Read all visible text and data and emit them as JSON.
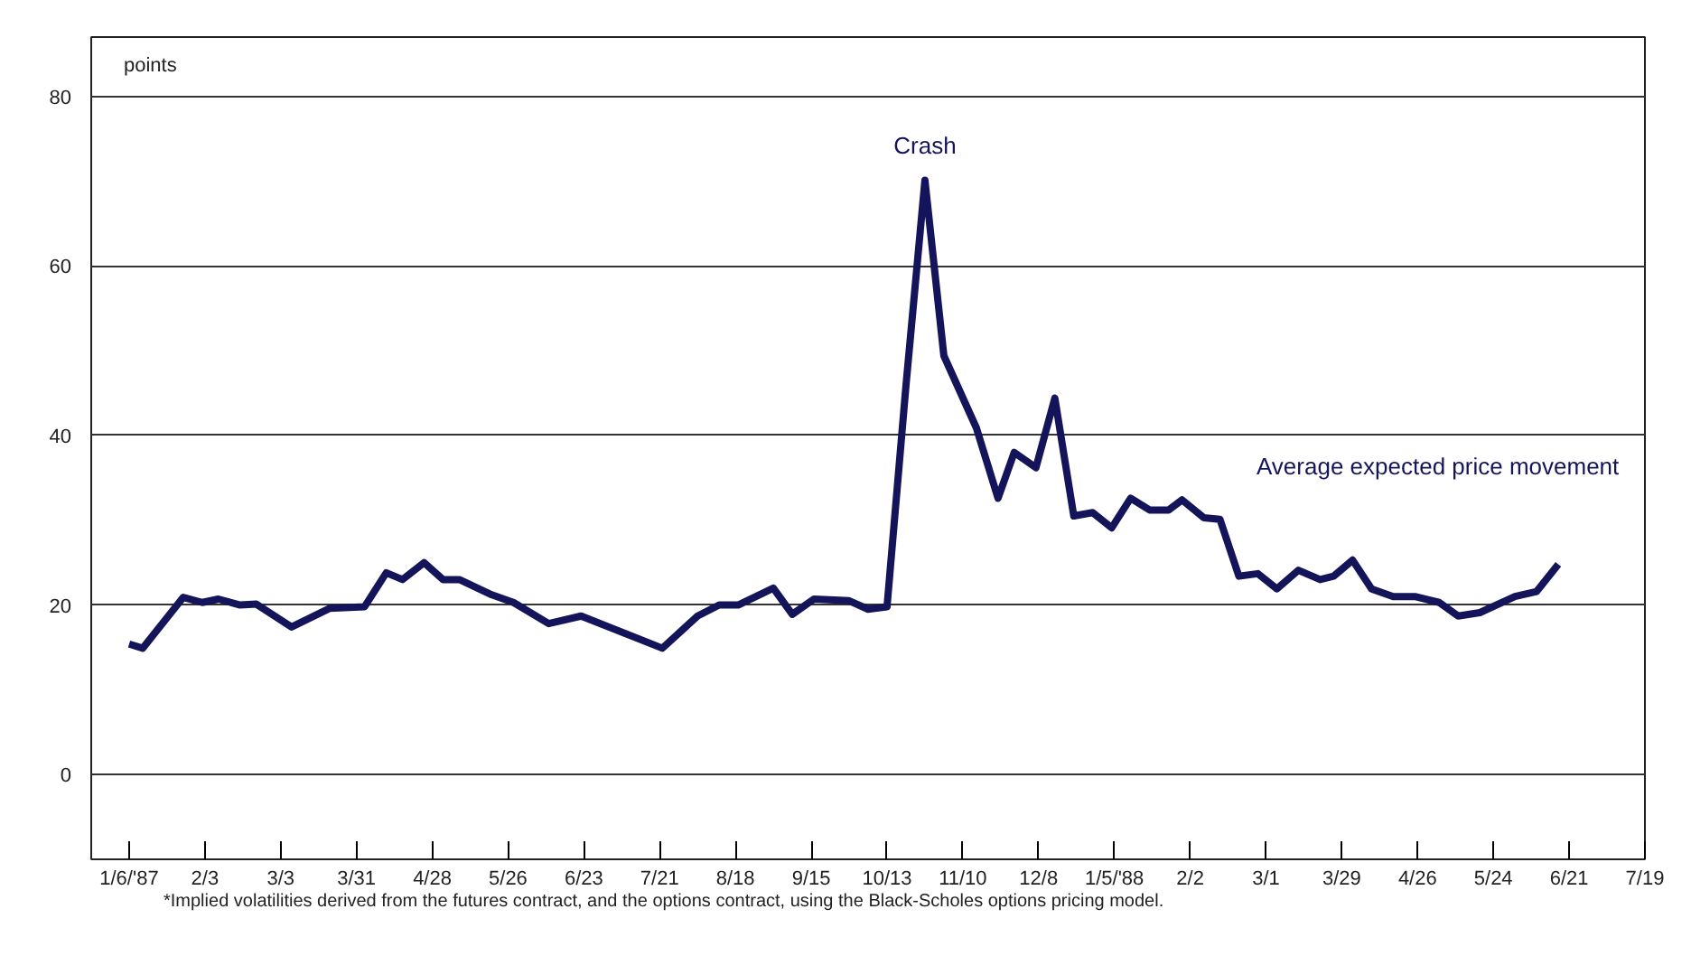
{
  "chart_data": {
    "type": "line",
    "ylabel": "points",
    "x": [
      "1987-01-06",
      "1987-01-11",
      "1987-01-26",
      "1987-02-02",
      "1987-02-08",
      "1987-02-16",
      "1987-02-22",
      "1987-03-07",
      "1987-03-21",
      "1987-04-03",
      "1987-04-11",
      "1987-04-17",
      "1987-04-25",
      "1987-05-02",
      "1987-05-08",
      "1987-05-20",
      "1987-05-28",
      "1987-06-10",
      "1987-06-22",
      "1987-07-22",
      "1987-08-04",
      "1987-08-12",
      "1987-08-19",
      "1987-09-01",
      "1987-09-08",
      "1987-09-16",
      "1987-09-29",
      "1987-10-06",
      "1987-10-13",
      "1987-10-20",
      "1987-10-27",
      "1987-11-03",
      "1987-11-15",
      "1987-11-23",
      "1987-11-29",
      "1987-12-07",
      "1987-12-14",
      "1987-12-21",
      "1987-12-28",
      "1988-01-04",
      "1988-01-11",
      "1988-01-18",
      "1988-01-25",
      "1988-01-30",
      "1988-02-07",
      "1988-02-13",
      "1988-02-20",
      "1988-02-27",
      "1988-03-05",
      "1988-03-13",
      "1988-03-21",
      "1988-03-26",
      "1988-04-02",
      "1988-04-09",
      "1988-04-17",
      "1988-04-25",
      "1988-05-04",
      "1988-05-11",
      "1988-05-19",
      "1988-06-01",
      "1988-06-09",
      "1988-06-17"
    ],
    "series": [
      {
        "color": "#14145a",
        "values": [
          15.4,
          14.9,
          20.9,
          20.3,
          20.7,
          20.0,
          20.1,
          17.4,
          19.6,
          19.8,
          23.8,
          23.0,
          25.0,
          23.0,
          23.0,
          21.2,
          20.3,
          17.8,
          18.7,
          14.9,
          18.7,
          20.0,
          20.0,
          22.0,
          18.9,
          20.7,
          20.5,
          19.5,
          19.8,
          45.9,
          70.1,
          49.4,
          40.9,
          32.6,
          38.0,
          36.2,
          44.4,
          30.5,
          30.9,
          29.1,
          32.6,
          31.2,
          31.2,
          32.4,
          30.3,
          30.1,
          23.4,
          23.7,
          21.9,
          24.1,
          23.0,
          23.4,
          25.3,
          21.9,
          21.0,
          21.0,
          20.3,
          18.7,
          19.1,
          21.0,
          21.6,
          24.8
        ]
      }
    ],
    "xlim": [
      "1986-12-23",
      "1988-07-19"
    ],
    "xticks": [
      {
        "value": "1987-01-06",
        "label": "1/6/'87"
      },
      {
        "value": "1987-02-03",
        "label": "2/3"
      },
      {
        "value": "1987-03-03",
        "label": "3/3"
      },
      {
        "value": "1987-03-31",
        "label": "3/31"
      },
      {
        "value": "1987-04-28",
        "label": "4/28"
      },
      {
        "value": "1987-05-26",
        "label": "5/26"
      },
      {
        "value": "1987-06-23",
        "label": "6/23"
      },
      {
        "value": "1987-07-21",
        "label": "7/21"
      },
      {
        "value": "1987-08-18",
        "label": "8/18"
      },
      {
        "value": "1987-09-15",
        "label": "9/15"
      },
      {
        "value": "1987-10-13",
        "label": "10/13"
      },
      {
        "value": "1987-11-10",
        "label": "11/10"
      },
      {
        "value": "1987-12-08",
        "label": "12/8"
      },
      {
        "value": "1988-01-05",
        "label": "1/5/'88"
      },
      {
        "value": "1988-02-02",
        "label": "2/2"
      },
      {
        "value": "1988-03-01",
        "label": "3/1"
      },
      {
        "value": "1988-03-29",
        "label": "3/29"
      },
      {
        "value": "1988-04-26",
        "label": "4/26"
      },
      {
        "value": "1988-05-24",
        "label": "5/24"
      },
      {
        "value": "1988-06-21",
        "label": "6/21"
      },
      {
        "value": "1988-07-19",
        "label": "7/19"
      }
    ],
    "ylim": [
      -10,
      87
    ],
    "yticks": [
      0,
      20,
      40,
      60,
      80
    ],
    "grid": "y",
    "line_style": "solid",
    "annotations": [
      {
        "text": "Crash",
        "x": "1987-10-27",
        "y": 70.1
      },
      "Average expected price movement",
      "*Implied volatilities derived from the futures contract, and the options contract, using the Black-Scholes options pricing model."
    ]
  }
}
